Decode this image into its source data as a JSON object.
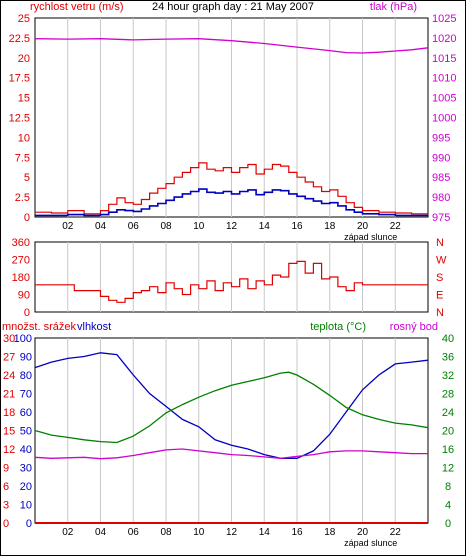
{
  "title": "24 hour graph day : 21 May 2007",
  "colors": {
    "wind": "#e00000",
    "gust": "#e00000",
    "avg_wind": "#0000c0",
    "pressure": "#d000d0",
    "direction": "#e00000",
    "humidity": "#0000c0",
    "temperature": "#008000",
    "dewpoint": "#d000d0",
    "rain": "#e00000",
    "grid": "#c8c8c8"
  },
  "chart_data": [
    {
      "type": "line",
      "id": "wind-pressure",
      "left_label": "rychlost vetru (m/s)",
      "right_label": "tlak (hPa)",
      "left_ticks": [
        "0",
        "2.5",
        "5",
        "7.5",
        "10",
        "12.5",
        "15",
        "17.5",
        "20",
        "22.5",
        "25"
      ],
      "left_range": [
        0,
        25
      ],
      "right_ticks": [
        "975",
        "980",
        "985",
        "990",
        "995",
        "1000",
        "1005",
        "1010",
        "1015",
        "1020",
        "1025"
      ],
      "right_range": [
        975,
        1025
      ],
      "x_ticks": [
        "02",
        "04",
        "06",
        "08",
        "10",
        "12",
        "14",
        "16",
        "18",
        "20",
        "22"
      ],
      "x_range": [
        0,
        24
      ],
      "sunset_label": "západ slunce",
      "series": [
        {
          "key": "gust",
          "x": [
            0,
            1,
            2,
            3,
            4,
            4.5,
            5,
            5.5,
            6,
            6.5,
            7,
            7.5,
            8,
            8.5,
            9,
            9.5,
            10,
            10.5,
            11,
            11.5,
            12,
            12.5,
            13,
            13.5,
            14,
            14.5,
            15,
            15.5,
            16,
            16.5,
            17,
            17.5,
            18,
            18.5,
            19,
            19.5,
            20,
            21,
            22,
            23,
            24
          ],
          "y": [
            0.6,
            0.5,
            0.8,
            0.4,
            0.8,
            1.6,
            2.4,
            1.8,
            1.6,
            2.2,
            3.0,
            3.6,
            4.2,
            5.0,
            5.6,
            6.2,
            6.8,
            6.0,
            5.8,
            6.2,
            5.6,
            6.2,
            6.6,
            5.4,
            6.0,
            6.6,
            6.4,
            5.6,
            5.0,
            4.4,
            3.8,
            3.2,
            3.4,
            2.6,
            1.8,
            1.2,
            0.8,
            0.6,
            0.5,
            0.4,
            0.4
          ]
        },
        {
          "key": "avg_wind",
          "x": [
            0,
            1,
            2,
            3,
            4,
            4.5,
            5,
            5.5,
            6,
            6.5,
            7,
            7.5,
            8,
            8.5,
            9,
            9.5,
            10,
            10.5,
            11,
            11.5,
            12,
            12.5,
            13,
            13.5,
            14,
            14.5,
            15,
            15.5,
            16,
            16.5,
            17,
            17.5,
            18,
            18.5,
            19,
            19.5,
            20,
            21,
            22,
            23,
            24
          ],
          "y": [
            0.2,
            0.2,
            0.3,
            0.2,
            0.3,
            0.6,
            0.9,
            0.8,
            0.7,
            1.0,
            1.4,
            1.7,
            2.1,
            2.5,
            2.9,
            3.2,
            3.5,
            3.1,
            3.0,
            3.2,
            2.9,
            3.2,
            3.4,
            2.8,
            3.1,
            3.4,
            3.3,
            2.9,
            2.6,
            2.3,
            2.0,
            1.7,
            1.8,
            1.4,
            0.9,
            0.6,
            0.4,
            0.3,
            0.2,
            0.2,
            0.2
          ]
        },
        {
          "key": "pressure",
          "axis": "right",
          "x": [
            0,
            2,
            4,
            6,
            8,
            10,
            12,
            14,
            16,
            18,
            19,
            20,
            21,
            22,
            23,
            24
          ],
          "y": [
            1019.8,
            1019.7,
            1019.8,
            1019.5,
            1019.7,
            1019.8,
            1019.3,
            1018.6,
            1017.7,
            1016.8,
            1016.3,
            1016.2,
            1016.4,
            1016.7,
            1017.0,
            1017.5
          ]
        }
      ]
    },
    {
      "type": "scatter",
      "id": "wind-direction",
      "left_ticks": [
        "0",
        "90",
        "180",
        "270",
        "360"
      ],
      "left_range": [
        0,
        360
      ],
      "right_ticks": [
        "N",
        "E",
        "S",
        "W",
        "N"
      ],
      "x_range": [
        0,
        24
      ],
      "series": [
        {
          "key": "direction",
          "x": [
            0,
            1,
            2,
            2.4,
            3,
            3.5,
            4,
            4.5,
            5,
            5.5,
            6,
            6.5,
            7,
            7.5,
            8,
            8.5,
            9,
            9.5,
            10,
            10.5,
            11,
            11.5,
            12,
            12.5,
            13,
            13.5,
            14,
            14.5,
            15,
            15.5,
            16,
            16.5,
            17,
            17.5,
            18,
            18.5,
            19,
            19.5,
            20,
            21,
            22,
            23,
            24
          ],
          "y": [
            140,
            140,
            140,
            110,
            110,
            110,
            80,
            60,
            50,
            70,
            100,
            110,
            130,
            100,
            150,
            120,
            90,
            140,
            120,
            160,
            110,
            150,
            130,
            170,
            120,
            160,
            140,
            190,
            180,
            250,
            260,
            200,
            250,
            170,
            180,
            130,
            110,
            150,
            140,
            140,
            140,
            140,
            140
          ]
        }
      ]
    },
    {
      "type": "line",
      "id": "humidity-temperature",
      "left_label_rain": "množst. srážek",
      "left_label_humidity": "vlhkost",
      "right_label_temp": "teplota (°C)",
      "right_label_dew": "rosný bod",
      "rain_ticks": [
        "0",
        "3",
        "6",
        "9",
        "12",
        "15",
        "18",
        "21",
        "24",
        "27",
        "30"
      ],
      "rain_range": [
        0,
        30
      ],
      "humidity_ticks": [
        "0",
        "10",
        "20",
        "30",
        "40",
        "50",
        "60",
        "70",
        "80",
        "90",
        "100"
      ],
      "humidity_range": [
        0,
        100
      ],
      "temp_ticks": [
        "0",
        "4",
        "8",
        "12",
        "16",
        "20",
        "24",
        "28",
        "32",
        "36",
        "40"
      ],
      "temp_range": [
        0,
        40
      ],
      "x_ticks": [
        "02",
        "04",
        "06",
        "08",
        "10",
        "12",
        "14",
        "16",
        "18",
        "20",
        "22"
      ],
      "x_range": [
        0,
        24
      ],
      "sunset_label": "západ slunce",
      "series": [
        {
          "key": "humidity",
          "axis": "humidity",
          "x": [
            0,
            1,
            2,
            3,
            4,
            5,
            6,
            7,
            8,
            9,
            10,
            11,
            12,
            13,
            14,
            15,
            16,
            17,
            18,
            19,
            20,
            21,
            22,
            23,
            24
          ],
          "y": [
            84,
            87,
            89,
            90,
            92,
            91,
            80,
            70,
            63,
            56,
            52,
            45,
            42,
            40,
            37,
            35,
            35,
            39,
            48,
            60,
            72,
            80,
            86,
            87,
            88
          ]
        },
        {
          "key": "temperature",
          "axis": "temp",
          "x": [
            0,
            1,
            2,
            3,
            4,
            5,
            6,
            7,
            8,
            9,
            10,
            11,
            12,
            13,
            14,
            15,
            15.5,
            16,
            17,
            18,
            19,
            20,
            21,
            22,
            23,
            24
          ],
          "y": [
            20,
            19,
            18.5,
            18,
            17.6,
            17.4,
            18.8,
            21,
            23.8,
            25.6,
            27.2,
            28.6,
            29.8,
            30.6,
            31.4,
            32.4,
            32.6,
            32,
            30,
            27.6,
            25,
            23.4,
            22.4,
            21.6,
            21.2,
            20.6
          ]
        },
        {
          "key": "dewpoint",
          "axis": "temp",
          "x": [
            0,
            1,
            2,
            3,
            4,
            5,
            6,
            7,
            8,
            9,
            10,
            11,
            12,
            13,
            14,
            15,
            16,
            17,
            18,
            19,
            20,
            21,
            22,
            23,
            24
          ],
          "y": [
            14.2,
            14.0,
            14.1,
            14.2,
            13.9,
            14.1,
            14.6,
            15.2,
            15.8,
            16.0,
            15.6,
            15.2,
            14.8,
            14.6,
            14.3,
            14.0,
            14.4,
            14.8,
            15.4,
            15.6,
            15.6,
            15.4,
            15.2,
            15.0,
            15.0
          ]
        },
        {
          "key": "rain",
          "axis": "rain",
          "x": [
            0,
            24
          ],
          "y": [
            0,
            0
          ]
        }
      ]
    }
  ]
}
